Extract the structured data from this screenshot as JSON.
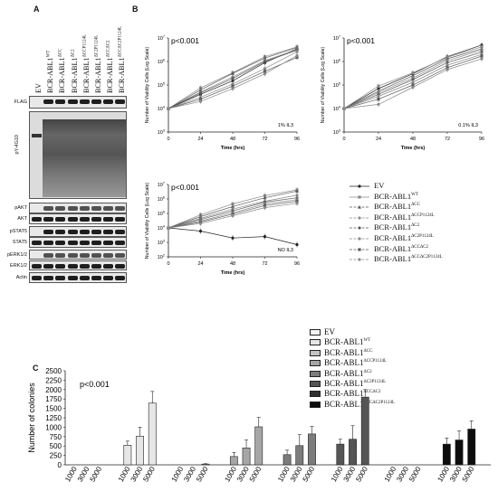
{
  "panels": {
    "a": "A",
    "b": "B",
    "c": "C"
  },
  "blot": {
    "lanes": [
      "EV",
      "BCR-ABL1",
      "BCR-ABL1",
      "BCR-ABL1",
      "BCR-ABL1",
      "BCR-ABL1",
      "BCR-ABL1",
      "BCR-ABL1"
    ],
    "lane_sups": [
      "",
      "WT",
      "ΔCC",
      "ΔC2",
      "ΔCCP1124L",
      "ΔC2P1124L",
      "ΔCCΔC2",
      "ΔCCΔC2P1124L"
    ],
    "rows": [
      "FLAG",
      "pY-4G10",
      "pAKT",
      "AKT",
      "pSTAT5",
      "STAT5",
      "pERK1/2",
      "ERK1/2",
      "Actin"
    ]
  },
  "colors": {
    "gray_line": "#8a8a8a",
    "dark_line": "#222222"
  },
  "legend_b": [
    {
      "name": "EV",
      "sup": ""
    },
    {
      "name": "BCR-ABL1",
      "sup": "WT"
    },
    {
      "name": "BCR-ABL1",
      "sup": "ΔCC"
    },
    {
      "name": "BCR-ABL1",
      "sup": "ΔCCP1124L"
    },
    {
      "name": "BCR-ABL1",
      "sup": "ΔC2"
    },
    {
      "name": "BCR-ABL1",
      "sup": "ΔC2P1124L"
    },
    {
      "name": "BCR-ABL1",
      "sup": "ΔCCΔC2"
    },
    {
      "name": "BCR-ABL1",
      "sup": "ΔCCΔC2P1124L"
    }
  ],
  "legend_c": [
    {
      "name": "EV",
      "sup": "",
      "color": "#f4f4f4"
    },
    {
      "name": "BCR-ABL1",
      "sup": "WT",
      "color": "#e6e6e6"
    },
    {
      "name": "BCR-ABL1",
      "sup": "ΔCC",
      "color": "#c4c4c4"
    },
    {
      "name": "BCR-ABL1",
      "sup": "ΔCCP1124L",
      "color": "#a6a6a6"
    },
    {
      "name": "BCR-ABL1",
      "sup": "ΔC2",
      "color": "#7c7c7c"
    },
    {
      "name": "BCR-ABL1",
      "sup": "ΔC2P1124L",
      "color": "#555555"
    },
    {
      "name": "BCR-ABL1",
      "sup": "ΔCCΔC2",
      "color": "#2e2e2e"
    },
    {
      "name": "BCR-ABL1",
      "sup": "ΔCCΔC2P1124L",
      "color": "#0d0d0d"
    }
  ],
  "chart_data": [
    {
      "type": "line",
      "title": "",
      "annotation": "p<0.001",
      "condition": "1% IL3",
      "xlabel": "Time (hrs)",
      "ylabel": "Number of Viability Cells (Log Scale)",
      "x": [
        0,
        24,
        48,
        72,
        96
      ],
      "yscale": "log",
      "ylim": [
        1000,
        10000000
      ],
      "ytick_exponents": [
        3,
        4,
        5,
        6,
        7
      ],
      "series": [
        {
          "values": [
            10000,
            40000,
            150000,
            900000,
            3500000
          ]
        },
        {
          "values": [
            10000,
            75000,
            330000,
            1600000,
            4200000
          ]
        },
        {
          "values": [
            10000,
            62000,
            310000,
            1400000,
            3900000
          ]
        },
        {
          "values": [
            10000,
            50000,
            220000,
            1100000,
            3200000
          ]
        },
        {
          "values": [
            10000,
            46000,
            190000,
            1000000,
            3000000
          ]
        },
        {
          "values": [
            10000,
            30000,
            110000,
            500000,
            2600000
          ]
        },
        {
          "values": [
            10000,
            25000,
            90000,
            380000,
            1500000
          ]
        },
        {
          "values": [
            10000,
            20000,
            70000,
            300000,
            1800000
          ]
        }
      ]
    },
    {
      "type": "line",
      "title": "",
      "annotation": "p<0.001",
      "condition": "0.1% IL3",
      "xlabel": "Time (hrs)",
      "ylabel": "Number of Viability Cells (Log Scale)",
      "x": [
        0,
        24,
        48,
        72,
        96
      ],
      "yscale": "log",
      "ylim": [
        1000,
        10000000
      ],
      "ytick_exponents": [
        3,
        4,
        5,
        6,
        7
      ],
      "series": [
        {
          "values": [
            10000,
            70000,
            300000,
            1600000,
            5000000
          ]
        },
        {
          "values": [
            10000,
            90000,
            330000,
            1500000,
            4200000
          ]
        },
        {
          "values": [
            10000,
            55000,
            250000,
            1300000,
            3500000
          ]
        },
        {
          "values": [
            10000,
            48000,
            200000,
            1100000,
            3000000
          ]
        },
        {
          "values": [
            10000,
            40000,
            170000,
            900000,
            2500000
          ]
        },
        {
          "values": [
            10000,
            33000,
            130000,
            700000,
            2000000
          ]
        },
        {
          "values": [
            10000,
            25000,
            100000,
            550000,
            1700000
          ]
        },
        {
          "values": [
            10000,
            15000,
            80000,
            450000,
            1300000
          ]
        }
      ]
    },
    {
      "type": "line",
      "title": "",
      "annotation": "p<0.001",
      "condition": "NO IL3",
      "xlabel": "Time (hrs)",
      "ylabel": "Number of Viability Cells (Log Scale)",
      "x": [
        0,
        24,
        48,
        72,
        96
      ],
      "yscale": "log",
      "ylim": [
        100,
        10000000
      ],
      "ytick_exponents": [
        2,
        3,
        4,
        5,
        6,
        7
      ],
      "series": [
        {
          "values": [
            10000,
            6000,
            2000,
            2500,
            700
          ]
        },
        {
          "values": [
            10000,
            80000,
            450000,
            1700000,
            4200000
          ]
        },
        {
          "values": [
            10000,
            60000,
            300000,
            1200000,
            3500000
          ]
        },
        {
          "values": [
            10000,
            45000,
            200000,
            700000,
            1800000
          ]
        },
        {
          "values": [
            10000,
            38000,
            150000,
            600000,
            1200000
          ]
        },
        {
          "values": [
            10000,
            30000,
            110000,
            450000,
            900000
          ]
        },
        {
          "values": [
            10000,
            25000,
            90000,
            350000,
            700000
          ]
        },
        {
          "values": [
            10000,
            20000,
            70000,
            250000,
            500000
          ]
        }
      ]
    },
    {
      "type": "bar",
      "title": "",
      "annotation": "p<0.001",
      "xlabel": "",
      "ylabel": "Number of colonies",
      "ylim": [
        0,
        2500
      ],
      "yticks": [
        0,
        250,
        500,
        750,
        1000,
        1250,
        1500,
        1750,
        2000,
        2250,
        2500
      ],
      "categories": [
        "1000",
        "3000",
        "5000"
      ],
      "series": [
        {
          "values": [
            0,
            0,
            0
          ],
          "errors": [
            0,
            0,
            0
          ]
        },
        {
          "values": [
            520,
            760,
            1640
          ],
          "errors": [
            110,
            240,
            310
          ]
        },
        {
          "values": [
            0,
            0,
            20
          ],
          "errors": [
            0,
            0,
            10
          ]
        },
        {
          "values": [
            220,
            450,
            1010
          ],
          "errors": [
            110,
            210,
            250
          ]
        },
        {
          "values": [
            270,
            510,
            820
          ],
          "errors": [
            120,
            290,
            200
          ]
        },
        {
          "values": [
            550,
            680,
            1800
          ],
          "errors": [
            130,
            360,
            200
          ]
        },
        {
          "values": [
            0,
            0,
            0
          ],
          "errors": [
            0,
            0,
            0
          ]
        },
        {
          "values": [
            550,
            660,
            950
          ],
          "errors": [
            160,
            240,
            220
          ]
        }
      ]
    }
  ]
}
